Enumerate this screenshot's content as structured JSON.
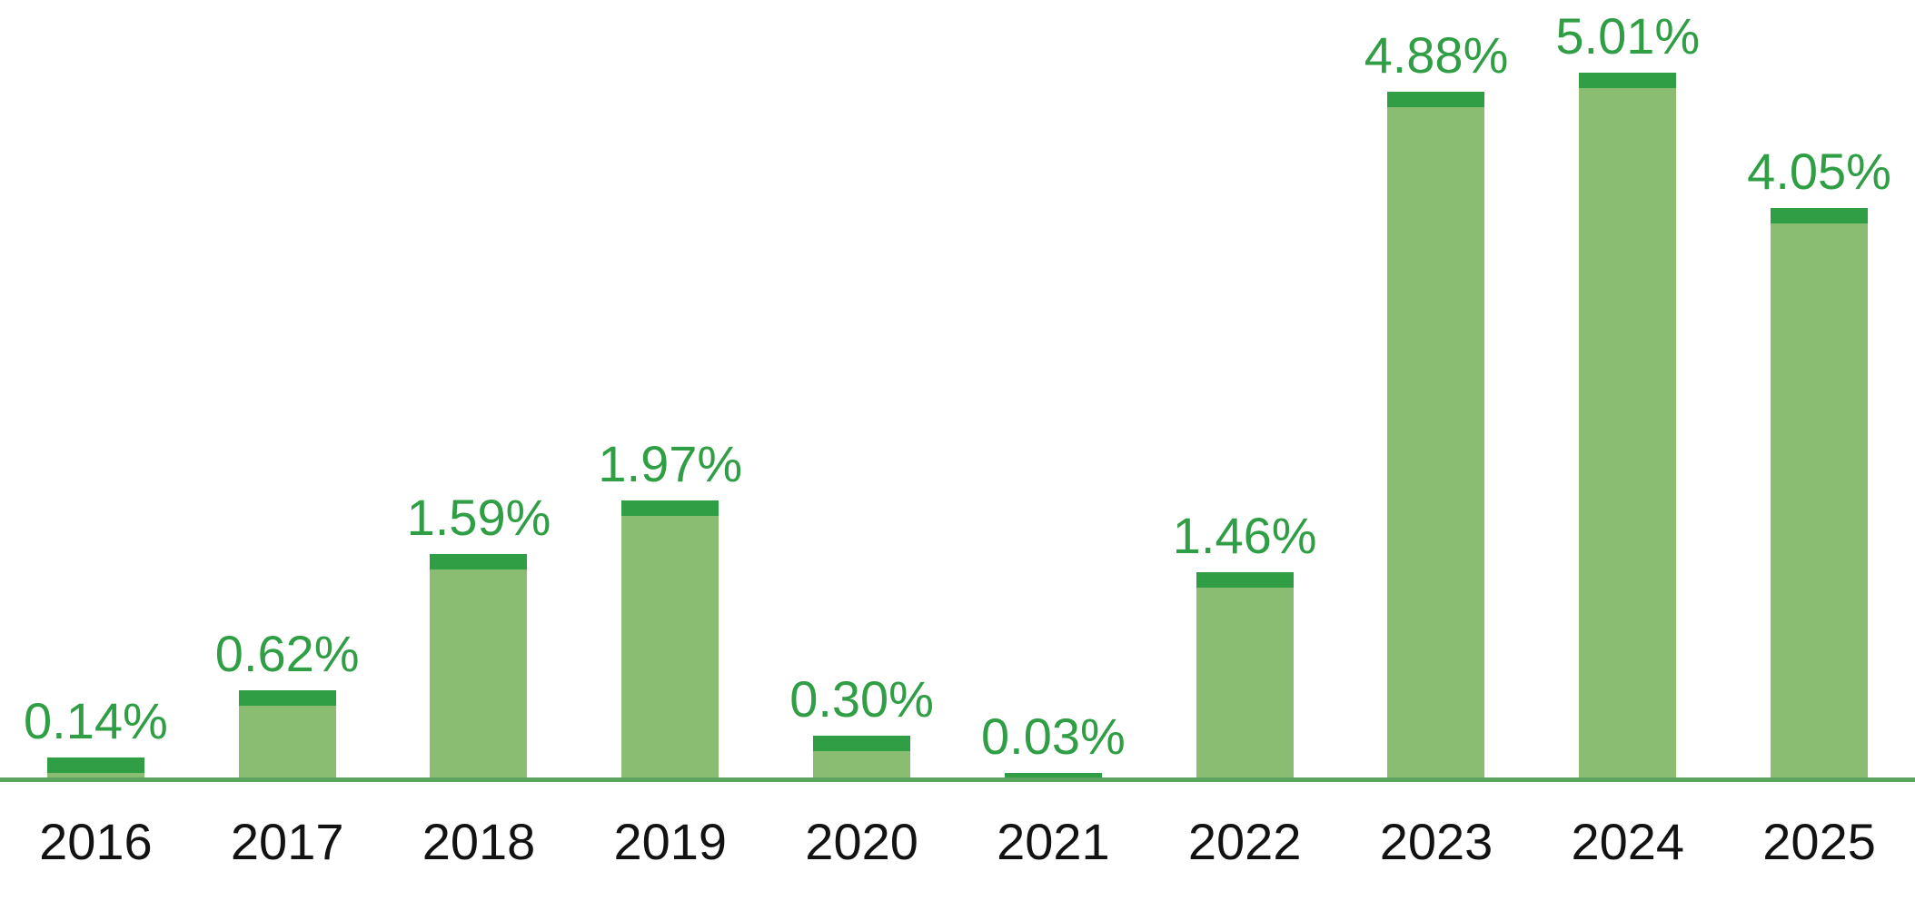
{
  "chart_data": {
    "type": "bar",
    "categories": [
      "2016",
      "2017",
      "2018",
      "2019",
      "2020",
      "2021",
      "2022",
      "2023",
      "2024",
      "2025"
    ],
    "values": [
      0.14,
      0.62,
      1.59,
      1.97,
      0.3,
      0.03,
      1.46,
      4.88,
      5.01,
      4.05
    ],
    "value_labels": [
      "0.14%",
      "0.62%",
      "1.59%",
      "1.97%",
      "0.30%",
      "0.03%",
      "1.46%",
      "4.88%",
      "5.01%",
      "4.05%"
    ],
    "title": "",
    "xlabel": "",
    "ylabel": "",
    "ylim": [
      0,
      5.53
    ],
    "grid": false,
    "legend": null,
    "bar_style": "light fill with darker cap segment at top"
  },
  "colors": {
    "background": "#ffffff",
    "bar_fill": "#8abc71",
    "bar_cap": "#2f9e44",
    "value_label": "#2f9e44",
    "axis_line": "#5aa65f",
    "year_label": "#121212"
  }
}
